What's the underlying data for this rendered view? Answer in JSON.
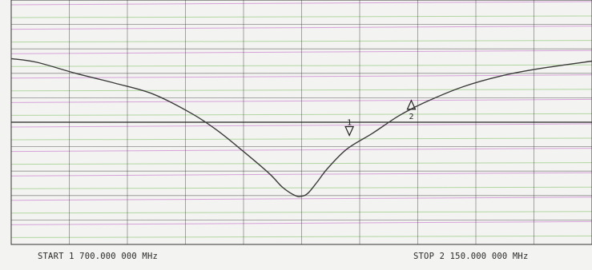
{
  "chart_data": {
    "type": "line",
    "x_range_mhz": [
      1700,
      2150
    ],
    "y_divisions": 10,
    "x_divisions": 10,
    "grid": true,
    "reference_division": 5,
    "start_label": "START 1 700.000 000 MHz",
    "stop_label": "STOP 2 150.000 000 MHz",
    "series": [
      {
        "x": [
          1700,
          1720,
          1750,
          1780,
          1810,
          1840,
          1860,
          1880,
          1900,
          1910,
          1920,
          1925,
          1930,
          1937,
          1945,
          1960,
          1980,
          2000,
          2020,
          2050,
          2080,
          2110,
          2150
        ],
        "y": [
          7.6,
          7.45,
          7.0,
          6.6,
          6.15,
          5.35,
          4.65,
          3.8,
          2.9,
          2.35,
          2.0,
          1.97,
          2.1,
          2.55,
          3.1,
          3.9,
          4.55,
          5.25,
          5.8,
          6.45,
          6.9,
          7.2,
          7.5
        ]
      }
    ],
    "markers": [
      {
        "label": "1",
        "x": 1962,
        "y": 4.95,
        "shape": "down"
      },
      {
        "label": "2",
        "x": 2010,
        "y": 5.4,
        "shape": "up"
      }
    ],
    "colors": {
      "trace": "#3a3a3a",
      "grid": "#3a3a3a",
      "ghost_magenta": "#c060c8",
      "ghost_green": "#7cc060"
    }
  }
}
